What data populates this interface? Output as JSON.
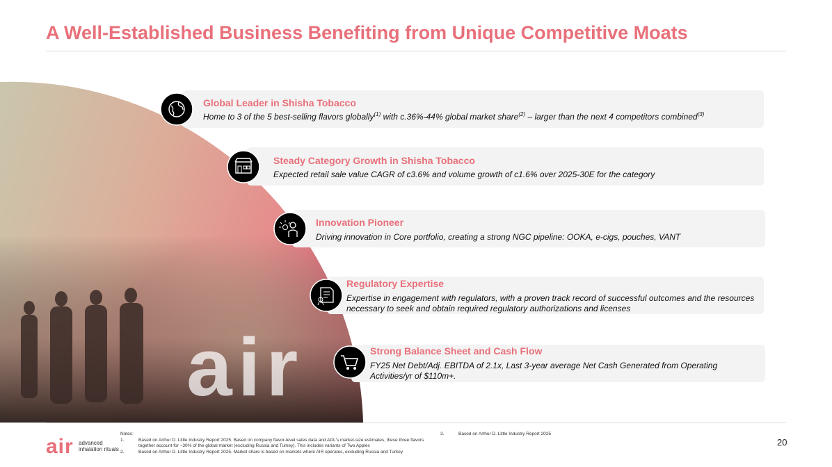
{
  "title": "A Well-Established Business Benefiting from Unique Competitive Moats",
  "items": [
    {
      "heading": "Global Leader in Shisha Tobacco",
      "segments": [
        {
          "text": "Home to 3 of the 5 best-selling flavors globally",
          "sup": "(1)"
        },
        {
          "text": " with c.36%-44% global market share",
          "sup": "(2)"
        },
        {
          "text": "  – larger than the next 4 competitors combined",
          "sup": "(3)"
        }
      ]
    },
    {
      "heading": "Steady Category Growth in Shisha Tobacco",
      "segments": [
        {
          "text": "Expected retail sale value CAGR of c3.6% and volume growth of c1.6% over 2025-30E for the category"
        }
      ]
    },
    {
      "heading": "Innovation Pioneer",
      "segments": [
        {
          "text": "Driving innovation in Core portfolio, creating a strong NGC pipeline: OOKA, e-cigs, pouches, VANT"
        }
      ]
    },
    {
      "heading": "Regulatory Expertise",
      "segments": [
        {
          "text": "Expertise in engagement with regulators, with a proven track record of successful outcomes and the resources necessary to seek and obtain required regulatory authorizations and licenses"
        }
      ]
    },
    {
      "heading": "Strong Balance Sheet and Cash Flow",
      "segments": [
        {
          "text": "FY25 Net Debt/Adj. EBITDA of 2.1x,  Last 3-year average Net Cash Generated from Operating Activities/yr of $110m+."
        }
      ]
    }
  ],
  "hero_logo": "air",
  "notes": {
    "label": "Notes:",
    "entries": [
      {
        "number": "1.",
        "text": "Based on Arthur D. Little Industry Report 2025. Based on company flavor-level sales data and ADL's market-size estimates, these three flavors together account for ~30% of the global market (excluding Russia and Turkey). This includes variants of Two Apples"
      },
      {
        "number": "2.",
        "text": "Based on Arthur D. Little Industry Report 2025. Market share is based on markets where AIR operates, excluding Russia and Turkey"
      },
      {
        "number": "3.",
        "text": "Based on Arthur D. Little Industry Report 2025"
      }
    ]
  },
  "page_number": "20",
  "logo": {
    "mark": "air",
    "tagline": "advanced inhalation rituals"
  }
}
